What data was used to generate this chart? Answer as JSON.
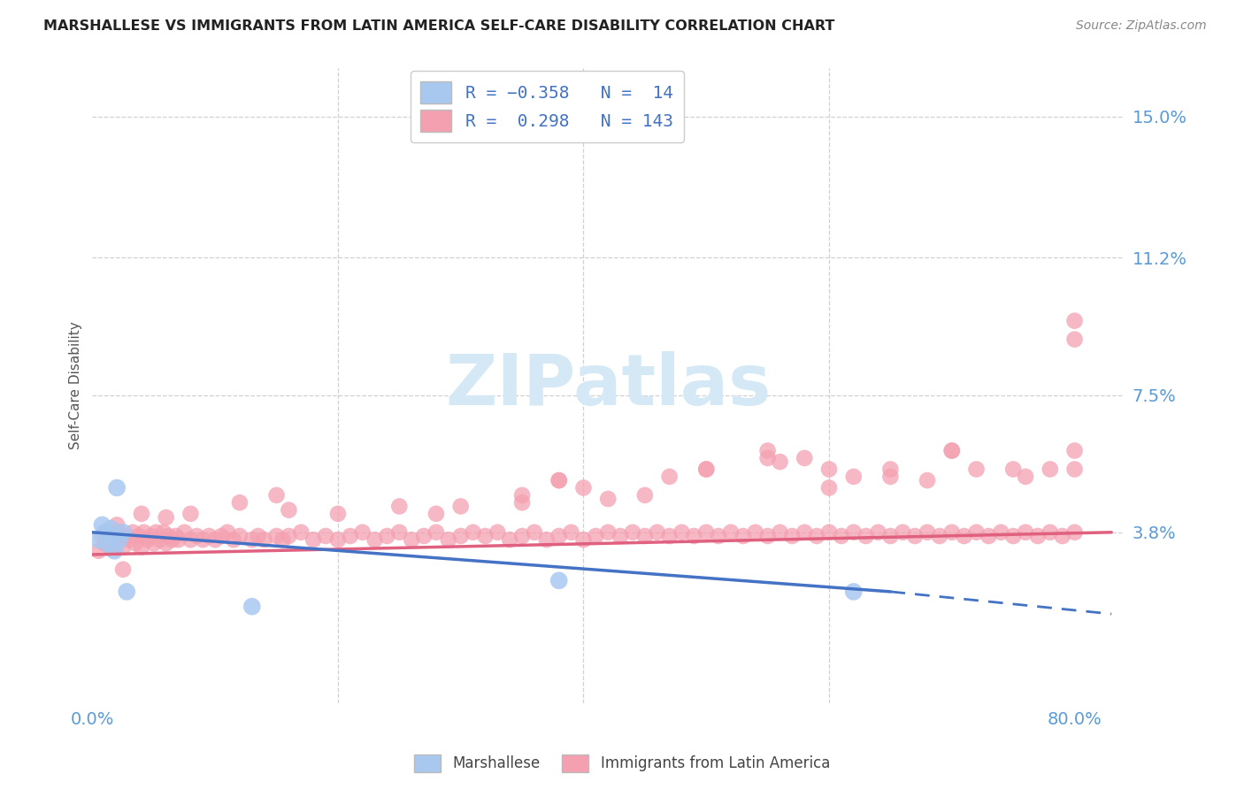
{
  "title": "MARSHALLESE VS IMMIGRANTS FROM LATIN AMERICA SELF-CARE DISABILITY CORRELATION CHART",
  "source": "Source: ZipAtlas.com",
  "ylabel": "Self-Care Disability",
  "xlim": [
    0.0,
    0.84
  ],
  "ylim": [
    -0.008,
    0.163
  ],
  "ytick_positions": [
    0.038,
    0.075,
    0.112,
    0.15
  ],
  "ytick_labels": [
    "3.8%",
    "7.5%",
    "11.2%",
    "15.0%"
  ],
  "xtick_positions": [
    0.0,
    0.8
  ],
  "xtick_labels": [
    "0.0%",
    "80.0%"
  ],
  "marshallese_color": "#a8c8f0",
  "latin_color": "#f4a0b0",
  "trend_blue_color": "#4472c4",
  "trend_pink_color": "#e06080",
  "axis_label_color": "#5b9bd5",
  "watermark_color": "#d4e8f5",
  "background": "#ffffff",
  "grid_color": "#d0d0d0",
  "title_color": "#222222",
  "source_color": "#888888",
  "legend_label_color": "#4472c4",
  "bottom_legend_color": "#444444",
  "marshallese_x": [
    0.005,
    0.008,
    0.01,
    0.012,
    0.015,
    0.015,
    0.018,
    0.02,
    0.022,
    0.025,
    0.028,
    0.13,
    0.38,
    0.62
  ],
  "marshallese_y": [
    0.036,
    0.04,
    0.038,
    0.035,
    0.037,
    0.039,
    0.033,
    0.05,
    0.036,
    0.038,
    0.022,
    0.018,
    0.025,
    0.022
  ],
  "latin_x": [
    0.005,
    0.008,
    0.01,
    0.012,
    0.015,
    0.018,
    0.02,
    0.022,
    0.025,
    0.028,
    0.03,
    0.033,
    0.035,
    0.038,
    0.04,
    0.042,
    0.045,
    0.048,
    0.05,
    0.052,
    0.055,
    0.058,
    0.06,
    0.062,
    0.065,
    0.068,
    0.07,
    0.075,
    0.08,
    0.085,
    0.09,
    0.095,
    0.1,
    0.105,
    0.11,
    0.115,
    0.12,
    0.13,
    0.135,
    0.14,
    0.15,
    0.155,
    0.16,
    0.17,
    0.18,
    0.19,
    0.2,
    0.21,
    0.22,
    0.23,
    0.24,
    0.25,
    0.26,
    0.27,
    0.28,
    0.29,
    0.3,
    0.31,
    0.32,
    0.33,
    0.34,
    0.35,
    0.36,
    0.37,
    0.38,
    0.39,
    0.4,
    0.41,
    0.42,
    0.43,
    0.44,
    0.45,
    0.46,
    0.47,
    0.48,
    0.49,
    0.5,
    0.51,
    0.52,
    0.53,
    0.54,
    0.55,
    0.56,
    0.57,
    0.58,
    0.59,
    0.6,
    0.61,
    0.62,
    0.63,
    0.64,
    0.65,
    0.66,
    0.67,
    0.68,
    0.69,
    0.7,
    0.71,
    0.72,
    0.73,
    0.74,
    0.75,
    0.76,
    0.77,
    0.78,
    0.79,
    0.8,
    0.5,
    0.55,
    0.6,
    0.65,
    0.7,
    0.58,
    0.76,
    0.78,
    0.8,
    0.8,
    0.15,
    0.38,
    0.2,
    0.35,
    0.025,
    0.28,
    0.42,
    0.47,
    0.3,
    0.35,
    0.4,
    0.55,
    0.6,
    0.65,
    0.7,
    0.75,
    0.8,
    0.04,
    0.02,
    0.45,
    0.5,
    0.38,
    0.56,
    0.62,
    0.68,
    0.72,
    0.06,
    0.08,
    0.12,
    0.16,
    0.25,
    0.8
  ],
  "latin_y": [
    0.033,
    0.037,
    0.035,
    0.038,
    0.034,
    0.036,
    0.035,
    0.038,
    0.034,
    0.037,
    0.036,
    0.038,
    0.035,
    0.037,
    0.034,
    0.038,
    0.036,
    0.037,
    0.035,
    0.038,
    0.036,
    0.038,
    0.035,
    0.037,
    0.036,
    0.037,
    0.036,
    0.038,
    0.036,
    0.037,
    0.036,
    0.037,
    0.036,
    0.037,
    0.038,
    0.036,
    0.037,
    0.036,
    0.037,
    0.036,
    0.037,
    0.036,
    0.037,
    0.038,
    0.036,
    0.037,
    0.036,
    0.037,
    0.038,
    0.036,
    0.037,
    0.038,
    0.036,
    0.037,
    0.038,
    0.036,
    0.037,
    0.038,
    0.037,
    0.038,
    0.036,
    0.037,
    0.038,
    0.036,
    0.037,
    0.038,
    0.036,
    0.037,
    0.038,
    0.037,
    0.038,
    0.037,
    0.038,
    0.037,
    0.038,
    0.037,
    0.038,
    0.037,
    0.038,
    0.037,
    0.038,
    0.037,
    0.038,
    0.037,
    0.038,
    0.037,
    0.038,
    0.037,
    0.038,
    0.037,
    0.038,
    0.037,
    0.038,
    0.037,
    0.038,
    0.037,
    0.038,
    0.037,
    0.038,
    0.037,
    0.038,
    0.037,
    0.038,
    0.037,
    0.038,
    0.037,
    0.038,
    0.055,
    0.06,
    0.05,
    0.055,
    0.06,
    0.058,
    0.053,
    0.055,
    0.09,
    0.06,
    0.048,
    0.052,
    0.043,
    0.046,
    0.028,
    0.043,
    0.047,
    0.053,
    0.045,
    0.048,
    0.05,
    0.058,
    0.055,
    0.053,
    0.06,
    0.055,
    0.055,
    0.043,
    0.04,
    0.048,
    0.055,
    0.052,
    0.057,
    0.053,
    0.052,
    0.055,
    0.042,
    0.043,
    0.046,
    0.044,
    0.045,
    0.095
  ],
  "trend_blue_x0": 0.0,
  "trend_blue_y0": 0.038,
  "trend_blue_x1": 0.65,
  "trend_blue_y1": 0.022,
  "trend_blue_dash_x0": 0.65,
  "trend_blue_dash_y0": 0.022,
  "trend_blue_dash_x1": 0.83,
  "trend_blue_dash_y1": 0.016,
  "trend_pink_x0": 0.0,
  "trend_pink_y0": 0.032,
  "trend_pink_x1": 0.83,
  "trend_pink_y1": 0.038
}
